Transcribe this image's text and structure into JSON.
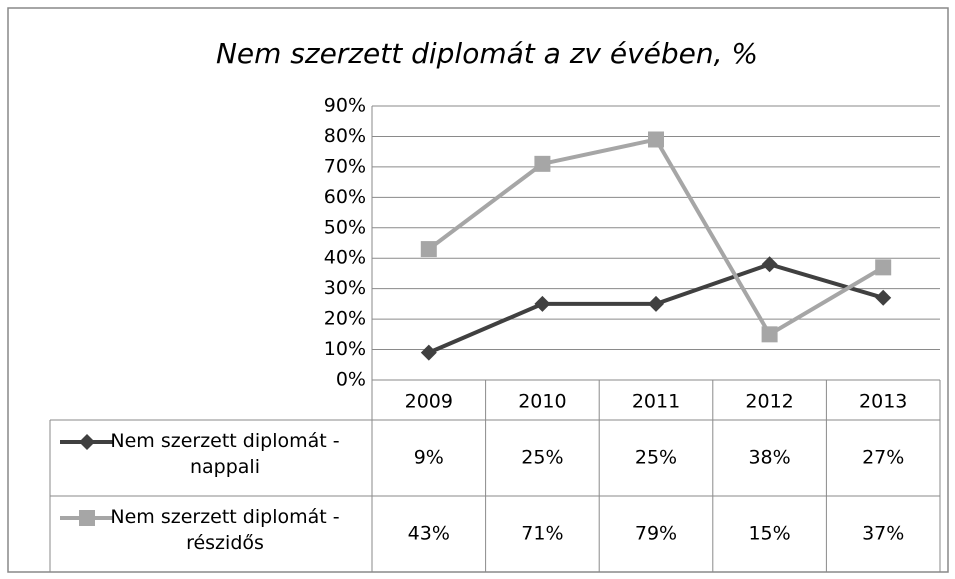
{
  "chart_data": {
    "type": "line",
    "title": "Nem szerzett diplomát a zv évében, %",
    "categories": [
      "2009",
      "2010",
      "2011",
      "2012",
      "2013"
    ],
    "series": [
      {
        "name": "Nem szerzett diplomát - nappali",
        "color": "#404040",
        "marker": "diamond",
        "values": [
          9,
          25,
          25,
          38,
          27
        ],
        "value_labels": [
          "9%",
          "25%",
          "25%",
          "38%",
          "27%"
        ]
      },
      {
        "name": "Nem szerzett diplomát - részidős",
        "color": "#a6a6a6",
        "marker": "square",
        "values": [
          43,
          71,
          79,
          15,
          37
        ],
        "value_labels": [
          "43%",
          "71%",
          "79%",
          "15%",
          "37%"
        ]
      }
    ],
    "ylim": [
      0,
      90
    ],
    "yticks": [
      {
        "value": 0,
        "label": "0%"
      },
      {
        "value": 10,
        "label": "10%"
      },
      {
        "value": 20,
        "label": "20%"
      },
      {
        "value": 30,
        "label": "30%"
      },
      {
        "value": 40,
        "label": "40%"
      },
      {
        "value": 50,
        "label": "50%"
      },
      {
        "value": 60,
        "label": "60%"
      },
      {
        "value": 70,
        "label": "70%"
      },
      {
        "value": 80,
        "label": "80%"
      },
      {
        "value": 90,
        "label": "90%"
      }
    ],
    "grid": true
  }
}
